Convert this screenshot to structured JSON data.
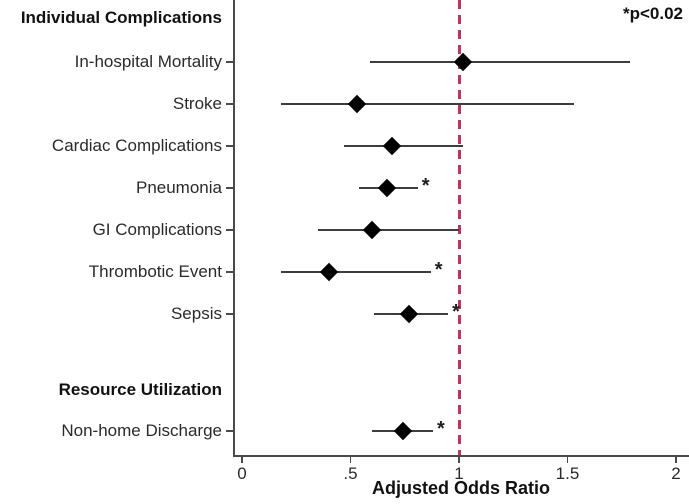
{
  "chart_data": {
    "type": "scatter",
    "subtype": "forest-plot",
    "title": "",
    "annotation": "*p<0.02",
    "xlabel": "Adjusted Odds Ratio",
    "xlim": [
      0,
      2.06
    ],
    "grid": false,
    "x_ticks": [
      {
        "value": 0,
        "label": "0"
      },
      {
        "value": 0.5,
        "label": ".5"
      },
      {
        "value": 1,
        "label": "1"
      },
      {
        "value": 1.5,
        "label": "1.5"
      },
      {
        "value": 2,
        "label": "2"
      }
    ],
    "reference_line": {
      "value": 1,
      "style": "dashed"
    },
    "significance_marker": "*",
    "sections": [
      {
        "header": "Individual Complications",
        "rows": [
          {
            "label": "In-hospital Mortality",
            "or": 1.02,
            "ci_low": 0.59,
            "ci_high": 1.79,
            "significant": false
          },
          {
            "label": "Stroke",
            "or": 0.53,
            "ci_low": 0.18,
            "ci_high": 1.53,
            "significant": false
          },
          {
            "label": "Cardiac Complications",
            "or": 0.69,
            "ci_low": 0.47,
            "ci_high": 1.02,
            "significant": false
          },
          {
            "label": "Pneumonia",
            "or": 0.67,
            "ci_low": 0.54,
            "ci_high": 0.81,
            "significant": true
          },
          {
            "label": "GI Complications",
            "or": 0.6,
            "ci_low": 0.35,
            "ci_high": 1.0,
            "significant": false
          },
          {
            "label": "Thrombotic Event",
            "or": 0.4,
            "ci_low": 0.18,
            "ci_high": 0.87,
            "significant": true
          },
          {
            "label": "Sepsis",
            "or": 0.77,
            "ci_low": 0.61,
            "ci_high": 0.95,
            "significant": true
          }
        ]
      },
      {
        "header": "Resource Utilization",
        "rows": [
          {
            "label": "Non-home Discharge",
            "or": 0.74,
            "ci_low": 0.6,
            "ci_high": 0.88,
            "significant": true
          }
        ]
      }
    ],
    "colors": {
      "marker": "#000000",
      "ci_line": "#3d3d3d",
      "axis": "#4a4a4a",
      "text": "#1c1c1c",
      "reference": "#C0335A",
      "background": "#ffffff"
    }
  }
}
